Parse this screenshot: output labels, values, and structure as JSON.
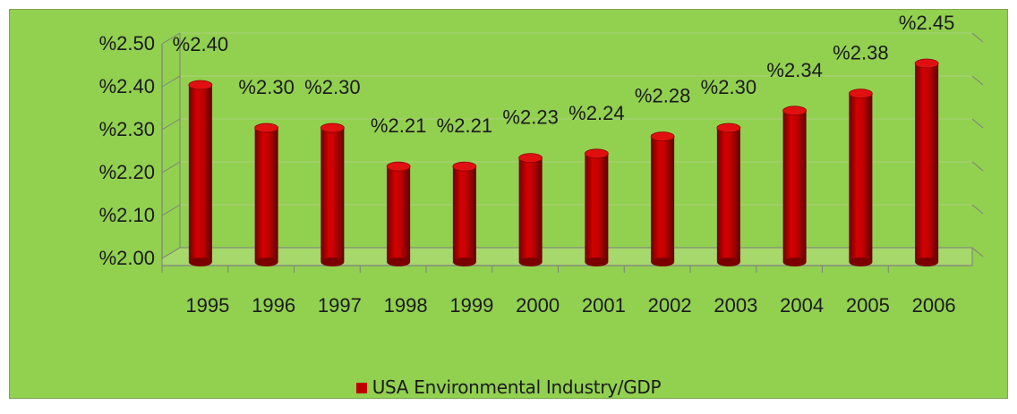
{
  "chart_data": {
    "type": "bar",
    "categories": [
      "1995",
      "1996",
      "1997",
      "1998",
      "1999",
      "2000",
      "2001",
      "2002",
      "2003",
      "2004",
      "2005",
      "2006"
    ],
    "series": [
      {
        "name": "USA Environmental Industry/GDP",
        "values": [
          2.4,
          2.3,
          2.3,
          2.21,
          2.21,
          2.23,
          2.24,
          2.28,
          2.3,
          2.34,
          2.38,
          2.45
        ]
      }
    ],
    "data_labels": [
      "%2.40",
      "%2.30",
      "%2.30",
      "%2.21",
      "%2.21",
      "%2.23",
      "%2.24",
      "%2.28",
      "%2.30",
      "%2.34",
      "%2.38",
      "%2.45"
    ],
    "y_ticks": [
      2.0,
      2.1,
      2.2,
      2.3,
      2.4,
      2.5
    ],
    "y_tick_labels": [
      "%2.00",
      "%2.10",
      "%2.20",
      "%2.30",
      "%2.40",
      "%2.50"
    ],
    "ylim": [
      2.0,
      2.5
    ],
    "title": "",
    "xlabel": "",
    "ylabel": "",
    "grid": true,
    "legend_position": "bottom",
    "colors": {
      "bar": "#c00000",
      "bar_dark": "#7a0000",
      "background": "#92d050",
      "axis": "#7f7f7f"
    }
  }
}
